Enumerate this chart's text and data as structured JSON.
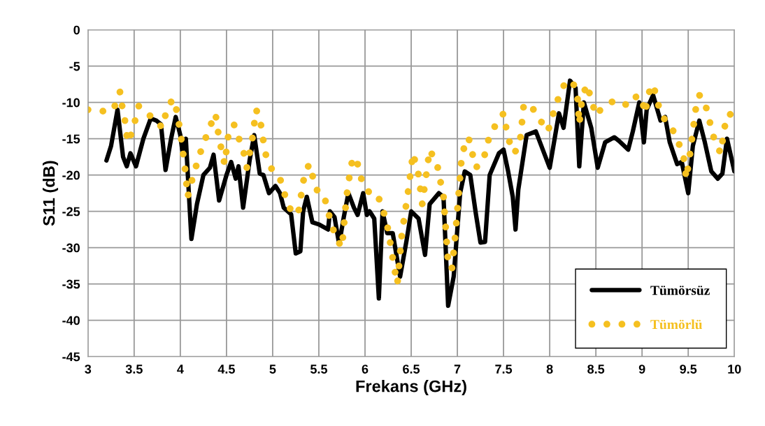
{
  "chart_data": {
    "type": "line",
    "xlabel": "Frekans (GHz)",
    "ylabel": "S11 (dB)",
    "xlim": [
      3,
      10
    ],
    "xticks": [
      3,
      3.5,
      4,
      4.5,
      5,
      5.5,
      6,
      6.5,
      7,
      7.5,
      8,
      8.5,
      9,
      9.5,
      10
    ],
    "ylim": [
      -45,
      0
    ],
    "yticks": [
      -45,
      -40,
      -35,
      -30,
      -25,
      -20,
      -15,
      -10,
      -5,
      0
    ],
    "grid": true,
    "legend": "bottom right",
    "series": [
      {
        "name": "Tümörsüz",
        "color": "#000000",
        "line_style": "solid",
        "x": [
          3.2,
          3.25,
          3.32,
          3.38,
          3.42,
          3.46,
          3.52,
          3.6,
          3.68,
          3.74,
          3.79,
          3.84,
          3.9,
          3.95,
          4.0,
          4.02,
          4.06,
          4.09,
          4.12,
          4.18,
          4.25,
          4.32,
          4.36,
          4.42,
          4.5,
          4.55,
          4.6,
          4.63,
          4.68,
          4.75,
          4.8,
          4.86,
          4.9,
          4.96,
          5.03,
          5.08,
          5.12,
          5.2,
          5.25,
          5.3,
          5.33,
          5.37,
          5.43,
          5.5,
          5.6,
          5.62,
          5.67,
          5.72,
          5.77,
          5.82,
          5.88,
          5.92,
          5.98,
          6.02,
          6.05,
          6.1,
          6.15,
          6.19,
          6.24,
          6.3,
          6.38,
          6.45,
          6.5,
          6.58,
          6.65,
          6.7,
          6.8,
          6.85,
          6.9,
          6.96,
          7.03,
          7.08,
          7.14,
          7.2,
          7.25,
          7.3,
          7.35,
          7.45,
          7.5,
          7.55,
          7.6,
          7.63,
          7.66,
          7.75,
          7.85,
          8.0,
          8.1,
          8.15,
          8.22,
          8.28,
          8.32,
          8.37,
          8.45,
          8.52,
          8.6,
          8.7,
          8.75,
          8.85,
          8.9,
          8.97,
          9.02,
          9.05,
          9.12,
          9.2,
          9.25,
          9.3,
          9.38,
          9.43,
          9.5,
          9.55,
          9.62,
          9.68,
          9.75,
          9.82,
          9.87,
          9.92,
          10.0
        ],
        "values": [
          -18,
          -16,
          -11,
          -17.5,
          -18.8,
          -17,
          -18.8,
          -15,
          -12.2,
          -12.5,
          -13,
          -19.3,
          -15,
          -12,
          -14.5,
          -16.5,
          -15,
          -22,
          -28.8,
          -24,
          -20,
          -19,
          -17.2,
          -23.5,
          -20,
          -18.2,
          -20.5,
          -18.8,
          -24.5,
          -18,
          -14.5,
          -19.8,
          -20,
          -22.5,
          -21.5,
          -22.5,
          -24.5,
          -25.4,
          -30.8,
          -30.5,
          -25,
          -23,
          -26.5,
          -26.8,
          -27.5,
          -25,
          -25.8,
          -29.5,
          -25.8,
          -22.5,
          -24.5,
          -25.5,
          -22.5,
          -25.5,
          -25,
          -26,
          -37,
          -25,
          -28,
          -28,
          -34,
          -29,
          -25,
          -26,
          -31,
          -24,
          -22.5,
          -23,
          -38,
          -34,
          -22.5,
          -19.5,
          -20,
          -25.3,
          -29.3,
          -29.2,
          -20,
          -17,
          -16.5,
          -19.5,
          -23,
          -27.5,
          -22,
          -14.5,
          -14,
          -19,
          -11.5,
          -13.5,
          -7,
          -8,
          -18.8,
          -10,
          -13.5,
          -19,
          -15.5,
          -14.8,
          -15.3,
          -16.5,
          -14,
          -10,
          -15.5,
          -11,
          -9,
          -12.5,
          -12,
          -15.5,
          -18.5,
          -18.2,
          -22.5,
          -16,
          -12.5,
          -15.5,
          -19.5,
          -20.5,
          -19.8,
          -15,
          -19.5
        ]
      },
      {
        "name": "Tümörlü",
        "color": "#f5c020",
        "line_style": "dotted",
        "x": [
          3.0,
          3.1,
          3.2,
          3.28,
          3.32,
          3.35,
          3.37,
          3.4,
          3.43,
          3.48,
          3.55,
          3.62,
          3.7,
          3.75,
          3.8,
          3.86,
          3.92,
          3.95,
          4.0,
          4.05,
          4.08,
          4.12,
          4.2,
          4.3,
          4.38,
          4.42,
          4.48,
          4.52,
          4.58,
          4.62,
          4.68,
          4.72,
          4.78,
          4.82,
          4.86,
          4.92,
          5.0,
          5.08,
          5.15,
          5.22,
          5.28,
          5.35,
          5.4,
          5.47,
          5.55,
          5.62,
          5.68,
          5.75,
          5.8,
          5.85,
          5.9,
          5.97,
          6.05,
          6.12,
          6.18,
          6.25,
          6.32,
          6.35,
          6.4,
          6.47,
          6.52,
          6.58,
          6.62,
          6.7,
          6.78,
          6.85,
          6.9,
          6.94,
          6.98,
          7.05,
          7.12,
          7.2,
          7.28,
          7.35,
          7.42,
          7.5,
          7.55,
          7.62,
          7.68,
          7.72,
          7.8,
          7.9,
          7.98,
          8.05,
          8.12,
          8.18,
          8.25,
          8.3,
          8.32,
          8.35,
          8.4,
          8.45,
          8.5,
          8.55,
          8.65,
          8.75,
          8.85,
          8.95,
          9.0,
          9.03,
          9.08,
          9.12,
          9.18,
          9.22,
          9.3,
          9.38,
          9.45,
          9.48,
          9.52,
          9.58,
          9.62,
          9.67,
          9.72,
          9.78,
          9.85,
          9.9,
          9.95,
          10.0
        ],
        "values": [
          -11,
          -11.2,
          -11.2,
          -11,
          -9,
          -8.5,
          -10.5,
          -12.5,
          -15.5,
          -14,
          -10.5,
          -11.5,
          -12,
          -12.5,
          -13.5,
          -10.8,
          -9.5,
          -10.5,
          -14,
          -19,
          -23,
          -21,
          -17.5,
          -14,
          -11.5,
          -15,
          -18.5,
          -14.5,
          -13,
          -14.5,
          -16.5,
          -19,
          -15,
          -11,
          -12,
          -17,
          -19.5,
          -20.5,
          -23.5,
          -25.5,
          -25,
          -19.5,
          -18.5,
          -22,
          -22.5,
          -26,
          -28.5,
          -30,
          -23,
          -18.5,
          -17.5,
          -21,
          -22.5,
          -22.5,
          -24,
          -27.5,
          -33,
          -35,
          -28,
          -22,
          -17,
          -20,
          -24,
          -16.5,
          -18.5,
          -23,
          -32,
          -33,
          -28,
          -17,
          -14.8,
          -19,
          -18,
          -14.5,
          -13,
          -11.5,
          -15,
          -17,
          -15.2,
          -10.2,
          -10.5,
          -12.5,
          -14,
          -11,
          -8.5,
          -7,
          -7.2,
          -9,
          -13,
          -9.5,
          -7.5,
          -9.5,
          -11.8,
          -11,
          -10,
          -9.7,
          -10.5,
          -9,
          -9.5,
          -11.5,
          -8.5,
          -7.5,
          -10.5,
          -12,
          -13,
          -15,
          -17.5,
          -20.5,
          -17,
          -11,
          -9,
          -9.5,
          -12,
          -15,
          -17,
          -13,
          -11.5,
          -13
        ]
      }
    ]
  }
}
